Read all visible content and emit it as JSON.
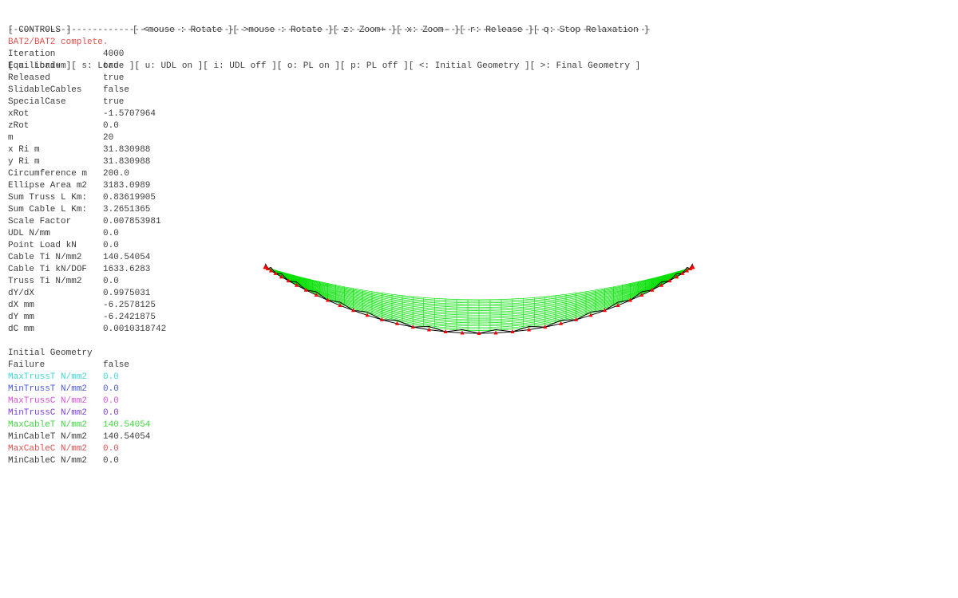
{
  "controls": {
    "title": "[ CONTROLS ]",
    "row1": [
      "[ <mouse : Rotate ]",
      "[ >mouse : Rotate ]",
      "[ z: Zoom+ ]",
      "[ x: Zoom- ]",
      "[ r: Release ]",
      "[ q: Stop Relaxation ]"
    ],
    "row2": [
      "[ a: Load+ ]",
      "[ s: Load- ]",
      "[ u: UDL on ]",
      "[ i: UDL off ]",
      "[ o: PL on ]",
      "[ p: PL off ]",
      "[ <: Initial Geometry ]",
      "[ >: Final Geometry ]"
    ]
  },
  "divider": "--------------------------------------------------------------------------------------------------------------------------",
  "status": "BAT2/BAT2 complete.",
  "params": [
    {
      "label": "Iteration",
      "value": "4000"
    },
    {
      "label": "Equilibrium",
      "value": "true"
    },
    {
      "label": "Released",
      "value": "true"
    },
    {
      "label": "SlidableCables",
      "value": "false"
    },
    {
      "label": "SpecialCase",
      "value": "true"
    },
    {
      "label": "xRot",
      "value": "-1.5707964"
    },
    {
      "label": "zRot",
      "value": "0.0"
    },
    {
      "label": "m",
      "value": "20"
    },
    {
      "label": "x Ri m",
      "value": "31.830988"
    },
    {
      "label": "y Ri m",
      "value": "31.830988"
    },
    {
      "label": "Circumference m",
      "value": "200.0"
    },
    {
      "label": "Ellipse Area m2",
      "value": "3183.0989"
    },
    {
      "label": "Sum Truss L Km:",
      "value": "0.83619905"
    },
    {
      "label": "Sum Cable L Km:",
      "value": "3.2651365"
    },
    {
      "label": "Scale Factor",
      "value": "0.007853981"
    },
    {
      "label": "UDL N/mm",
      "value": "0.0"
    },
    {
      "label": "Point Load kN",
      "value": "0.0"
    },
    {
      "label": "Cable Ti N/mm2",
      "value": "140.54054"
    },
    {
      "label": "Cable Ti kN/DOF",
      "value": "1633.6283"
    },
    {
      "label": "Truss Ti N/mm2",
      "value": "0.0"
    },
    {
      "label": "dY/dX",
      "value": "0.9975031"
    },
    {
      "label": "dX mm",
      "value": "-6.2578125"
    },
    {
      "label": "dY mm",
      "value": "-6.2421875"
    },
    {
      "label": "dC mm",
      "value": "0.0010318742"
    }
  ],
  "results": {
    "heading": "Initial Geometry",
    "rows": [
      {
        "label": "Failure",
        "value": "false",
        "color": "#3c3c3c"
      },
      {
        "label": "MaxTrussT N/mm2",
        "value": "0.0",
        "color": "#40d8d8"
      },
      {
        "label": "MinTrussT N/mm2",
        "value": "0.0",
        "color": "#4a5ad8"
      },
      {
        "label": "MaxTrussC N/mm2",
        "value": "0.0",
        "color": "#d850d8"
      },
      {
        "label": "MinTrussC N/mm2",
        "value": "0.0",
        "color": "#7a40d8"
      },
      {
        "label": "MaxCableT N/mm2",
        "value": "140.54054",
        "color": "#40d840"
      },
      {
        "label": "MinCableT N/mm2",
        "value": "140.54054",
        "color": "#3c3c3c"
      },
      {
        "label": "MaxCableC N/mm2",
        "value": "0.0",
        "color": "#e05050"
      },
      {
        "label": "MinCableC N/mm2",
        "value": "0.0",
        "color": "#3c3c3c"
      }
    ]
  },
  "colors": {
    "mesh": "#00e000",
    "truss": "#000000",
    "support": "#ff0000"
  }
}
